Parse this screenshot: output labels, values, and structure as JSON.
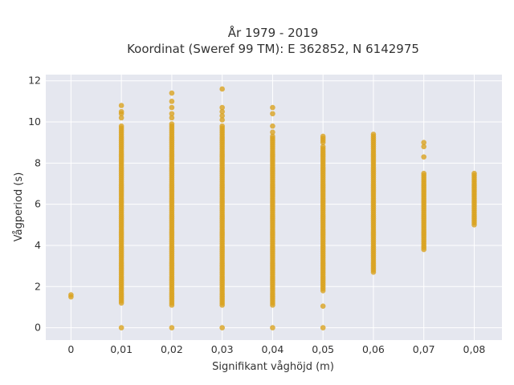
{
  "chart_data": {
    "type": "scatter",
    "title": "År 1979 - 2019",
    "subtitle": "Koordinat (Sweref 99 TM): E 362852, N 6142975",
    "xlabel": "Signifikant våghöjd (m)",
    "ylabel": "Vågperiod (s)",
    "xlim": [
      -0.005,
      0.0855
    ],
    "ylim": [
      -0.6,
      12.3
    ],
    "grid": true,
    "legend": "none",
    "colors": {
      "marker": "#d9a21f",
      "plot_bg": "#e5e7ef",
      "grid": "#ffffff",
      "text": "#333333"
    },
    "x_ticks": [
      0,
      0.01,
      0.02,
      0.03,
      0.04,
      0.05,
      0.06,
      0.07,
      0.08
    ],
    "x_tick_labels": [
      "0",
      "0,01",
      "0,02",
      "0,03",
      "0,04",
      "0,05",
      "0,06",
      "0,07",
      "0,08"
    ],
    "y_ticks": [
      0,
      2,
      4,
      6,
      8,
      10,
      12
    ],
    "y_tick_labels": [
      "0",
      "2",
      "4",
      "6",
      "8",
      "10",
      "12"
    ],
    "columns": [
      {
        "x": 0.0,
        "y_min": 1.5,
        "y_max": 1.6,
        "outliers": []
      },
      {
        "x": 0.01,
        "y_min": 1.2,
        "y_max": 9.8,
        "outliers": [
          0,
          10.2,
          10.4,
          10.5,
          10.8
        ]
      },
      {
        "x": 0.02,
        "y_min": 1.1,
        "y_max": 9.9,
        "outliers": [
          0,
          10.2,
          10.4,
          10.7,
          11.0,
          11.4
        ]
      },
      {
        "x": 0.03,
        "y_min": 1.1,
        "y_max": 9.8,
        "outliers": [
          0,
          10.1,
          10.3,
          10.5,
          10.7,
          11.6
        ]
      },
      {
        "x": 0.04,
        "y_min": 1.1,
        "y_max": 9.3,
        "outliers": [
          0,
          9.5,
          9.8,
          10.4,
          10.7
        ]
      },
      {
        "x": 0.05,
        "y_min": 1.8,
        "y_max": 8.8,
        "outliers": [
          0,
          1.05,
          9.0,
          9.1,
          9.2,
          9.3
        ]
      },
      {
        "x": 0.06,
        "y_min": 2.7,
        "y_max": 9.4,
        "outliers": []
      },
      {
        "x": 0.07,
        "y_min": 3.8,
        "y_max": 7.5,
        "outliers": [
          8.3,
          8.8,
          9.0
        ]
      },
      {
        "x": 0.08,
        "y_min": 5.0,
        "y_max": 7.5,
        "outliers": []
      }
    ]
  }
}
